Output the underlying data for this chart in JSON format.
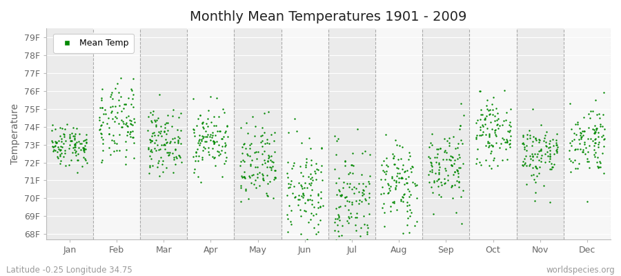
{
  "title": "Monthly Mean Temperatures 1901 - 2009",
  "ylabel": "Temperature",
  "xlabel_labels": [
    "Jan",
    "Feb",
    "Mar",
    "Apr",
    "May",
    "Jun",
    "Jul",
    "Aug",
    "Sep",
    "Oct",
    "Nov",
    "Dec"
  ],
  "ytick_labels": [
    "68F",
    "69F",
    "70F",
    "71F",
    "72F",
    "73F",
    "74F",
    "75F",
    "76F",
    "77F",
    "78F",
    "79F"
  ],
  "ytick_values": [
    68,
    69,
    70,
    71,
    72,
    73,
    74,
    75,
    76,
    77,
    78,
    79
  ],
  "ylim": [
    67.7,
    79.5
  ],
  "dot_color": "#008800",
  "dot_size": 3,
  "bg_odd": "#ebebeb",
  "bg_even": "#f7f7f7",
  "footer_left": "Latitude -0.25 Longitude 34.75",
  "footer_right": "worldspecies.org",
  "legend_label": "Mean Temp",
  "title_fontsize": 14,
  "axis_fontsize": 10,
  "tick_fontsize": 9,
  "footer_fontsize": 8.5,
  "n_years": 109,
  "seed": 42,
  "month_data": {
    "1": {
      "mean": 73.0,
      "std": 0.6
    },
    "2": {
      "mean": 74.1,
      "std": 1.1
    },
    "3": {
      "mean": 73.2,
      "std": 0.85
    },
    "4": {
      "mean": 73.3,
      "std": 0.9
    },
    "5": {
      "mean": 71.8,
      "std": 1.2
    },
    "6": {
      "mean": 70.3,
      "std": 1.4
    },
    "7": {
      "mean": 70.0,
      "std": 1.5
    },
    "8": {
      "mean": 70.8,
      "std": 1.2
    },
    "9": {
      "mean": 71.8,
      "std": 1.1
    },
    "10": {
      "mean": 73.7,
      "std": 0.85
    },
    "11": {
      "mean": 72.5,
      "std": 0.9
    },
    "12": {
      "mean": 73.3,
      "std": 1.0
    }
  }
}
